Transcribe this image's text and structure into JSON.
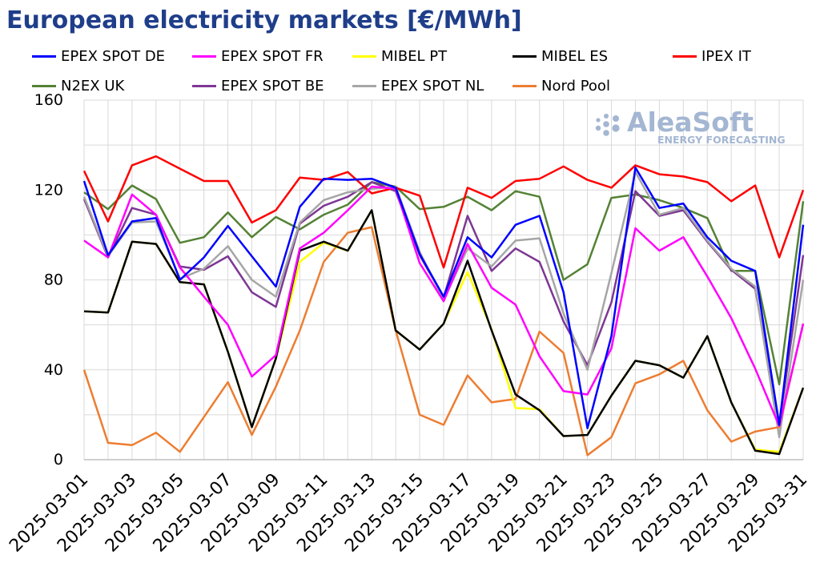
{
  "theme": {
    "title_color": "#1f3e8a",
    "logo_color": "#a3b6d2"
  },
  "logo": {
    "name": "AleaSoft",
    "tagline": "ENERGY FORECASTING"
  },
  "chart_data": {
    "type": "line",
    "title": "European electricity markets [€/MWh]",
    "x": [
      "2025-03-01",
      "2025-03-02",
      "2025-03-03",
      "2025-03-04",
      "2025-03-05",
      "2025-03-06",
      "2025-03-07",
      "2025-03-08",
      "2025-03-09",
      "2025-03-10",
      "2025-03-11",
      "2025-03-12",
      "2025-03-13",
      "2025-03-14",
      "2025-03-15",
      "2025-03-16",
      "2025-03-17",
      "2025-03-18",
      "2025-03-19",
      "2025-03-20",
      "2025-03-21",
      "2025-03-22",
      "2025-03-23",
      "2025-03-24",
      "2025-03-25",
      "2025-03-26",
      "2025-03-27",
      "2025-03-28",
      "2025-03-29",
      "2025-03-30",
      "2025-03-31"
    ],
    "xtick_labels": [
      "2025-03-01",
      "2025-03-03",
      "2025-03-05",
      "2025-03-07",
      "2025-03-09",
      "2025-03-11",
      "2025-03-13",
      "2025-03-15",
      "2025-03-17",
      "2025-03-19",
      "2025-03-21",
      "2025-03-23",
      "2025-03-25",
      "2025-03-27",
      "2025-03-29",
      "2025-03-31"
    ],
    "ylim": [
      0,
      160
    ],
    "yticks": [
      0,
      40,
      80,
      120,
      160
    ],
    "grid": true,
    "legend": "top",
    "series": [
      {
        "name": "EPEX SPOT DE",
        "color": "#0000ff",
        "values": [
          124,
          91,
          106,
          107.5,
          80,
          90,
          104,
          90.5,
          77,
          112.5,
          125,
          124.5,
          125,
          121,
          91.5,
          72.5,
          99,
          90,
          104.5,
          108.5,
          74.5,
          14,
          55,
          130,
          112,
          114,
          99,
          88.5,
          84,
          15.5,
          104.5
        ]
      },
      {
        "name": "EPEX SPOT FR",
        "color": "#ff00ff",
        "values": [
          97.5,
          90,
          118,
          109,
          85.5,
          72.5,
          60,
          37,
          46.5,
          94,
          101,
          111,
          121.5,
          120.5,
          87.5,
          70.5,
          96,
          76.5,
          69,
          46,
          30.5,
          29,
          49.5,
          103,
          93,
          99,
          81.5,
          63,
          40.5,
          15,
          60.5
        ]
      },
      {
        "name": "MIBEL PT",
        "color": "#ffff00",
        "values": [
          66,
          65.5,
          97,
          96,
          79,
          78,
          48,
          14.5,
          45,
          88,
          96.5,
          93,
          111,
          57.5,
          49,
          60.5,
          83.5,
          58,
          23,
          22.5,
          10.5,
          11,
          28.5,
          44,
          42,
          36.5,
          55,
          25.5,
          4.5,
          3.5,
          32
        ]
      },
      {
        "name": "MIBEL ES",
        "color": "#000000",
        "values": [
          66,
          65.5,
          97,
          96,
          79,
          78,
          48,
          14.5,
          45,
          93,
          97,
          93,
          111,
          57.5,
          49,
          60.5,
          88.5,
          57.5,
          29,
          22,
          10.5,
          11,
          28.5,
          44,
          42,
          36.5,
          55,
          25.5,
          4,
          2.5,
          32
        ]
      },
      {
        "name": "IPEX IT",
        "color": "#ff0000",
        "values": [
          128.5,
          106,
          131,
          135,
          129.5,
          124,
          124,
          105.5,
          111,
          125.5,
          124.5,
          128,
          118.5,
          121,
          117.5,
          85.5,
          121,
          116.5,
          124,
          125,
          130.5,
          124.5,
          121,
          131,
          127,
          126,
          123.5,
          115,
          122,
          90,
          120
        ]
      },
      {
        "name": "N2EX UK",
        "color": "#548235",
        "values": [
          119,
          111.5,
          122,
          116,
          96.5,
          99,
          110,
          99,
          108,
          102.5,
          109,
          113.5,
          123.5,
          121.5,
          111.5,
          112.5,
          117,
          111,
          119.5,
          117,
          80,
          87,
          116.5,
          118,
          115.5,
          112,
          107.5,
          84,
          84,
          33.5,
          115
        ]
      },
      {
        "name": "EPEX SPOT BE",
        "color": "#7e3794",
        "values": [
          116,
          90,
          112,
          109,
          86,
          84.5,
          90.5,
          74.5,
          68,
          105,
          113,
          117,
          123.5,
          119.5,
          91,
          72,
          108.5,
          84,
          94,
          88,
          61.5,
          42,
          70,
          119.5,
          108.5,
          111,
          97,
          84.5,
          76,
          15.5,
          91
        ]
      },
      {
        "name": "EPEX SPOT NL",
        "color": "#a6a6a6",
        "values": [
          117,
          90.5,
          105.5,
          106,
          80.5,
          85,
          95,
          80,
          72.5,
          105.5,
          115.5,
          119,
          120.5,
          121.5,
          92.5,
          71,
          94,
          86,
          97.5,
          98.5,
          65,
          40,
          83,
          128,
          109,
          112,
          97.5,
          85,
          77,
          10,
          80
        ]
      },
      {
        "name": "Nord Pool",
        "color": "#ed7d31",
        "values": [
          40,
          7.5,
          6.5,
          12,
          3.5,
          19,
          34.5,
          11,
          32.5,
          57.5,
          88,
          101,
          103.5,
          57.5,
          20,
          15.5,
          37.5,
          25.5,
          27,
          57,
          47.5,
          2,
          10,
          34,
          38,
          44,
          22,
          8,
          12.5,
          14.5,
          60.5
        ]
      }
    ]
  }
}
